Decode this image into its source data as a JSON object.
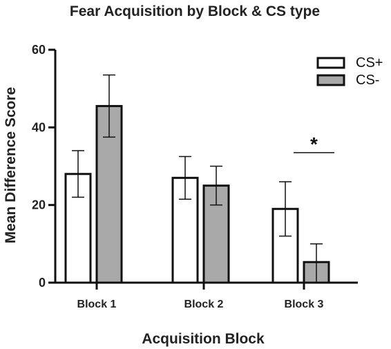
{
  "chart_data": {
    "type": "bar",
    "title": "Fear Acquisition by Block & CS type",
    "xlabel": "Acquisition Block",
    "ylabel": "Mean Difference Score",
    "categories": [
      "Block 1",
      "Block 2",
      "Block 3"
    ],
    "ylim": [
      0,
      60
    ],
    "yticks": [
      0,
      20,
      40,
      60
    ],
    "grid": false,
    "legend_position": "top-right",
    "series": [
      {
        "name": "CS+",
        "fill": "#ffffff",
        "values": [
          28,
          27,
          19
        ],
        "err_low": [
          22,
          21.5,
          12
        ],
        "err_high": [
          34,
          32.5,
          26
        ]
      },
      {
        "name": "CS-",
        "fill": "#a9a9a9",
        "values": [
          45.5,
          25,
          5.3
        ],
        "err_low": [
          37.5,
          20,
          0
        ],
        "err_high": [
          53.5,
          30,
          10
        ]
      }
    ],
    "annotations": [
      {
        "text": "*",
        "category": "Block 3",
        "y": 33.5
      }
    ]
  }
}
